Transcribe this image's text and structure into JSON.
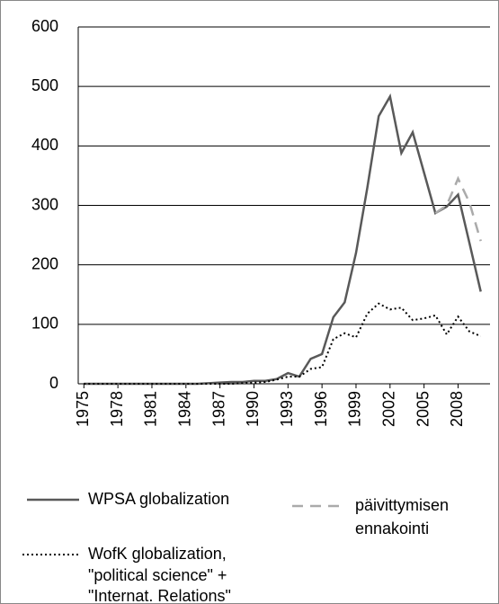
{
  "chart_data": {
    "type": "line",
    "x": [
      1975,
      1976,
      1977,
      1978,
      1979,
      1980,
      1981,
      1982,
      1983,
      1984,
      1985,
      1986,
      1987,
      1988,
      1989,
      1990,
      1991,
      1992,
      1993,
      1994,
      1995,
      1996,
      1997,
      1998,
      1999,
      2000,
      2001,
      2002,
      2003,
      2004,
      2005,
      2006,
      2007,
      2008,
      2009,
      2010
    ],
    "xlim": [
      1974.5,
      2010.5
    ],
    "xticks": [
      1975,
      1978,
      1981,
      1984,
      1987,
      1990,
      1993,
      1996,
      1999,
      2002,
      2005,
      2008
    ],
    "ylim": [
      0,
      600
    ],
    "yticks": [
      0,
      100,
      200,
      300,
      400,
      500,
      600
    ],
    "grid": true,
    "series": [
      {
        "name": [
          "WPSA globalization"
        ],
        "color": "#595959",
        "style": "solid",
        "values": [
          0,
          0,
          0,
          0,
          0,
          0,
          0,
          0,
          0,
          0,
          0,
          1,
          2,
          3,
          3,
          5,
          5,
          8,
          18,
          12,
          42,
          50,
          112,
          137,
          220,
          330,
          450,
          483,
          388,
          423,
          355,
          287,
          298,
          318,
          237,
          155
        ]
      },
      {
        "name": [
          "päivittymisen",
          "ennakointi"
        ],
        "color": "#aaaaaa",
        "style": "dashed",
        "values": [
          null,
          null,
          null,
          null,
          null,
          null,
          null,
          null,
          null,
          null,
          null,
          null,
          null,
          null,
          null,
          null,
          null,
          null,
          null,
          null,
          null,
          null,
          null,
          null,
          null,
          null,
          null,
          null,
          null,
          null,
          null,
          287,
          300,
          345,
          305,
          240
        ]
      },
      {
        "name": [
          "WofK globalization,",
          "\"political science\" +",
          "\"Internat. Relations\""
        ],
        "color": "#000000",
        "style": "dotted",
        "values": [
          0,
          0,
          0,
          0,
          0,
          0,
          0,
          0,
          0,
          0,
          0,
          0,
          0,
          0,
          1,
          2,
          3,
          7,
          12,
          12,
          25,
          28,
          75,
          85,
          78,
          118,
          135,
          125,
          128,
          107,
          110,
          115,
          83,
          113,
          88,
          80
        ]
      }
    ]
  }
}
